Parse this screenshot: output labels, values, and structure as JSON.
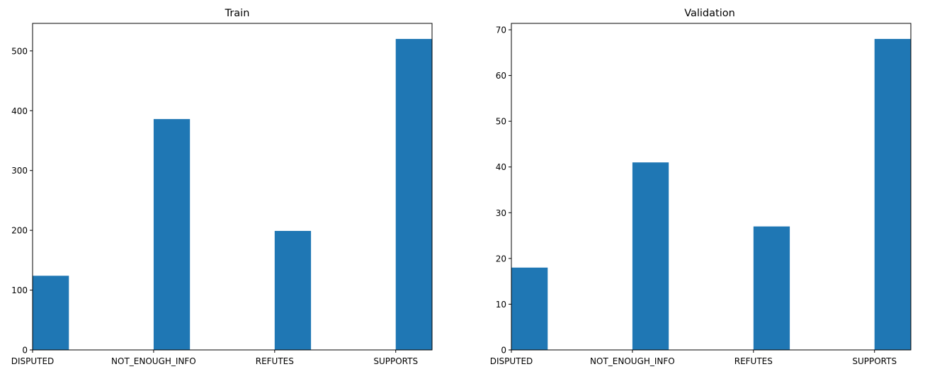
{
  "chart_data": [
    {
      "type": "bar",
      "title": "Train",
      "xlabel": "",
      "ylabel": "",
      "categories": [
        "DISPUTED",
        "NOT_ENOUGH_INFO",
        "REFUTES",
        "SUPPORTS"
      ],
      "values": [
        124,
        386,
        199,
        520
      ],
      "ylim": [
        0,
        546
      ],
      "yticks": [
        0,
        100,
        200,
        300,
        400,
        500
      ],
      "grid": false,
      "bar_color": "#1f77b4"
    },
    {
      "type": "bar",
      "title": "Validation",
      "xlabel": "",
      "ylabel": "",
      "categories": [
        "DISPUTED",
        "NOT_ENOUGH_INFO",
        "REFUTES",
        "SUPPORTS"
      ],
      "values": [
        18,
        41,
        27,
        68
      ],
      "ylim": [
        0,
        71.4
      ],
      "yticks": [
        0,
        10,
        20,
        30,
        40,
        50,
        60,
        70
      ],
      "grid": false,
      "bar_color": "#1f77b4"
    }
  ]
}
